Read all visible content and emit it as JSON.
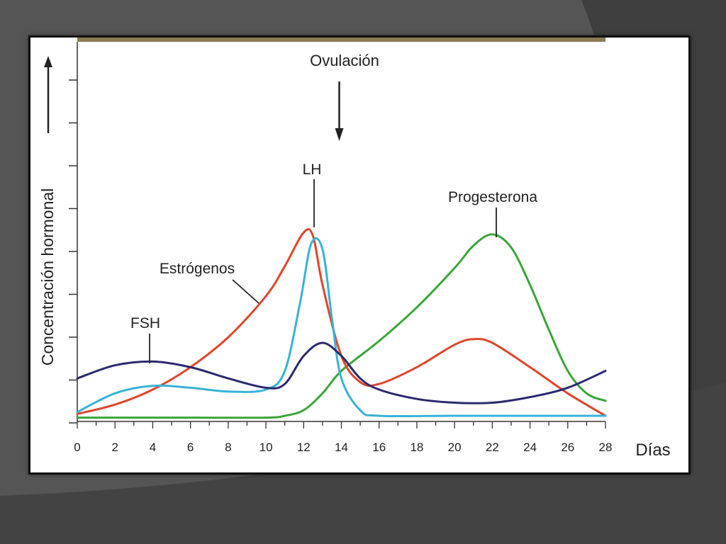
{
  "chart_data": {
    "type": "line",
    "xlabel": "Días",
    "ylabel": "Concentración hormonal",
    "xlim": [
      0,
      28
    ],
    "ylim": [
      0,
      10
    ],
    "x_ticks": [
      "0",
      "2",
      "4",
      "6",
      "8",
      "10",
      "12",
      "14",
      "16",
      "18",
      "20",
      "22",
      "24",
      "26",
      "28"
    ],
    "annotation": "Ovulación",
    "ovulation_day": 14,
    "colors": {
      "FSH": "#2b2a6e",
      "Estrógenos": "#e0452c",
      "LH": "#37b3d6",
      "Progesterona": "#3aa53a"
    },
    "series": [
      {
        "name": "FSH",
        "points": [
          [
            0,
            1.0
          ],
          [
            2,
            1.35
          ],
          [
            4,
            1.45
          ],
          [
            6,
            1.3
          ],
          [
            8,
            1.0
          ],
          [
            10,
            0.75
          ],
          [
            11,
            0.85
          ],
          [
            12,
            1.6
          ],
          [
            13,
            1.95
          ],
          [
            14,
            1.6
          ],
          [
            15,
            1.0
          ],
          [
            16,
            0.7
          ],
          [
            18,
            0.45
          ],
          [
            20,
            0.35
          ],
          [
            22,
            0.35
          ],
          [
            24,
            0.5
          ],
          [
            26,
            0.75
          ],
          [
            28,
            1.2
          ]
        ]
      },
      {
        "name": "Estrógenos",
        "points": [
          [
            0,
            0.05
          ],
          [
            2,
            0.3
          ],
          [
            4,
            0.7
          ],
          [
            6,
            1.3
          ],
          [
            8,
            2.1
          ],
          [
            10,
            3.2
          ],
          [
            11,
            4.0
          ],
          [
            12,
            4.9
          ],
          [
            12.5,
            4.8
          ],
          [
            13,
            3.5
          ],
          [
            14,
            1.6
          ],
          [
            15,
            0.9
          ],
          [
            16,
            0.85
          ],
          [
            18,
            1.3
          ],
          [
            20,
            1.9
          ],
          [
            21,
            2.05
          ],
          [
            22,
            1.95
          ],
          [
            24,
            1.3
          ],
          [
            26,
            0.6
          ],
          [
            28,
            0.0
          ]
        ]
      },
      {
        "name": "LH",
        "points": [
          [
            0,
            0.1
          ],
          [
            2,
            0.6
          ],
          [
            4,
            0.8
          ],
          [
            6,
            0.75
          ],
          [
            8,
            0.65
          ],
          [
            10,
            0.7
          ],
          [
            11,
            1.2
          ],
          [
            11.8,
            3.0
          ],
          [
            12.4,
            4.6
          ],
          [
            13,
            4.45
          ],
          [
            13.5,
            2.6
          ],
          [
            14,
            1.0
          ],
          [
            15,
            0.15
          ],
          [
            16,
            0.0
          ],
          [
            20,
            0.0
          ],
          [
            24,
            0.0
          ],
          [
            28,
            0.0
          ]
        ]
      },
      {
        "name": "Progesterona",
        "points": [
          [
            0,
            -0.05
          ],
          [
            6,
            -0.05
          ],
          [
            10,
            -0.05
          ],
          [
            11,
            0.0
          ],
          [
            12,
            0.15
          ],
          [
            13,
            0.6
          ],
          [
            14,
            1.2
          ],
          [
            16,
            2.0
          ],
          [
            18,
            2.9
          ],
          [
            20,
            3.95
          ],
          [
            21,
            4.55
          ],
          [
            22,
            4.85
          ],
          [
            23,
            4.5
          ],
          [
            24,
            3.5
          ],
          [
            25,
            2.3
          ],
          [
            26,
            1.2
          ],
          [
            27,
            0.6
          ],
          [
            28,
            0.4
          ]
        ]
      }
    ]
  }
}
